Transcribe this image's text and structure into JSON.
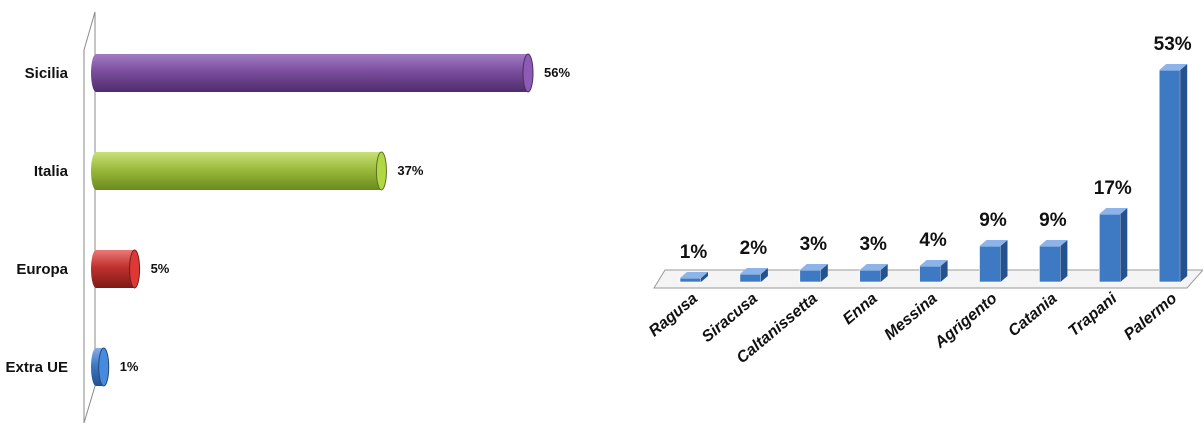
{
  "chart_data": [
    {
      "type": "bar",
      "orientation": "horizontal",
      "categories": [
        "Sicilia",
        "Italia",
        "Europa",
        "Extra UE"
      ],
      "values": [
        56,
        37,
        5,
        1
      ],
      "value_labels": [
        "56%",
        "37%",
        "5%",
        "1%"
      ],
      "colors": [
        "#7B4E9E",
        "#9BBB3C",
        "#C0312E",
        "#3E79C4"
      ],
      "unit": "%",
      "xlim": [
        0,
        60
      ],
      "grid": false,
      "legend": "none"
    },
    {
      "type": "bar",
      "orientation": "vertical",
      "style": "3d",
      "categories": [
        "Ragusa",
        "Siracusa",
        "Caltanissetta",
        "Enna",
        "Messina",
        "Agrigento",
        "Catania",
        "Trapani",
        "Palermo"
      ],
      "values": [
        1,
        2,
        3,
        3,
        4,
        9,
        9,
        17,
        53
      ],
      "value_labels": [
        "1%",
        "2%",
        "3%",
        "3%",
        "4%",
        "9%",
        "9%",
        "17%",
        "53%"
      ],
      "color": "#3E79C4",
      "unit": "%",
      "ylim": [
        0,
        55
      ],
      "grid": false,
      "legend": "none"
    }
  ]
}
